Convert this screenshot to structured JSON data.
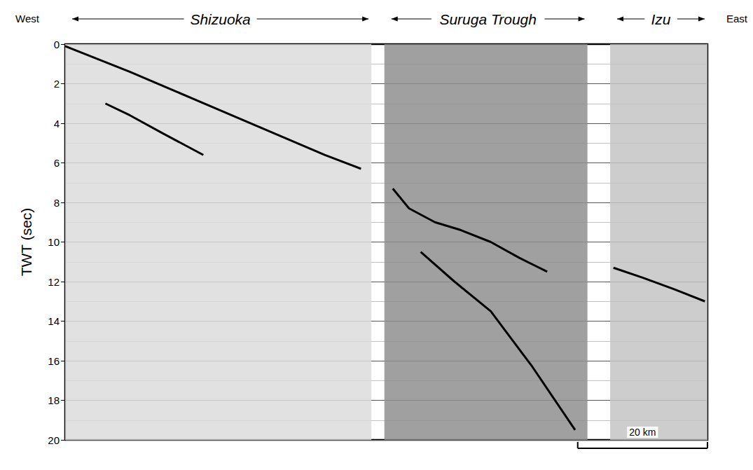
{
  "chart_data": {
    "type": "line",
    "direction_labels": [
      "West",
      "East"
    ],
    "ylabel": "TWT (sec)",
    "xlim": [
      0,
      99
    ],
    "ylim": [
      20,
      0
    ],
    "yticks": [
      0,
      2,
      4,
      6,
      8,
      10,
      12,
      14,
      16,
      18,
      20
    ],
    "grid": true,
    "tick_labels": "y",
    "regions": [
      {
        "label": "Shizuoka",
        "xlim": [
          0,
          47.2
        ],
        "color": "#dcdcdc"
      },
      {
        "label": "Suruga Trough",
        "xlim": [
          49.2,
          80.5
        ],
        "color": "#8f8f8f"
      },
      {
        "label": "Izu",
        "xlim": [
          84.0,
          99
        ],
        "color": "#c4c4c4"
      }
    ],
    "scale_bar": {
      "label": "20 km",
      "length": 20
    },
    "series": [
      {
        "x": [
          0,
          10,
          20,
          30,
          40,
          45.6
        ],
        "values": [
          0.1,
          1.4,
          2.8,
          4.2,
          5.6,
          6.3
        ],
        "color": "#000000"
      },
      {
        "x": [
          6.2,
          10,
          15,
          21.3
        ],
        "values": [
          3.0,
          3.6,
          4.5,
          5.6
        ],
        "color": "#000000"
      },
      {
        "x": [
          50.5,
          53,
          57,
          61,
          65.6,
          70,
          74.3
        ],
        "values": [
          7.3,
          8.3,
          9.0,
          9.4,
          10.0,
          10.8,
          11.5
        ],
        "color": "#000000"
      },
      {
        "x": [
          54.8,
          60,
          65.6,
          72,
          78.6
        ],
        "values": [
          10.5,
          12.0,
          13.5,
          16.3,
          19.5
        ],
        "color": "#000000"
      },
      {
        "x": [
          84.5,
          89,
          94,
          98.6
        ],
        "values": [
          11.3,
          11.8,
          12.4,
          13.0
        ],
        "color": "#000000"
      }
    ]
  }
}
